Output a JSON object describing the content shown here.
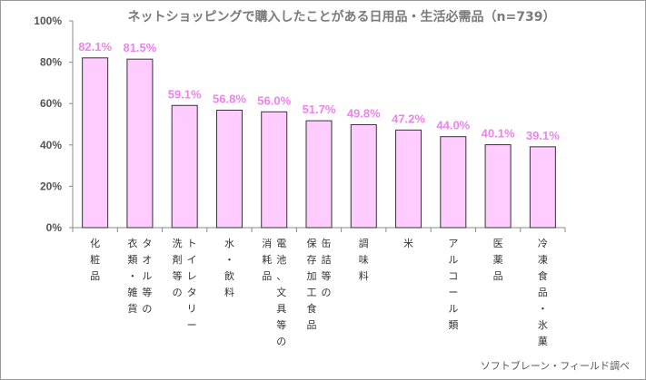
{
  "chart_data": {
    "type": "bar",
    "title": "ネットショッピングで購入したことがある日用品・生活必需品（n=739）",
    "source": "ソフトブレーン・フィールド調べ",
    "ylim": [
      0,
      100
    ],
    "yticks": [
      "0%",
      "20%",
      "40%",
      "60%",
      "80%",
      "100%"
    ],
    "grid": false,
    "categories": [
      {
        "lines": [
          "化粧品"
        ]
      },
      {
        "lines": [
          "タオル等の",
          "衣類・雑貨"
        ]
      },
      {
        "lines": [
          "トイレタリー",
          "洗剤等の"
        ]
      },
      {
        "lines": [
          "水・飲料"
        ]
      },
      {
        "lines": [
          "電池、文具等の",
          "消耗品"
        ]
      },
      {
        "lines": [
          "缶詰等の",
          "保存加工食品"
        ]
      },
      {
        "lines": [
          "調味料"
        ]
      },
      {
        "lines": [
          "米"
        ]
      },
      {
        "lines": [
          "アルコール類"
        ]
      },
      {
        "lines": [
          "医薬品"
        ]
      },
      {
        "lines": [
          "冷凍食品・氷菓"
        ]
      }
    ],
    "values": [
      82.1,
      81.5,
      59.1,
      56.8,
      56.0,
      51.7,
      49.8,
      47.2,
      44.0,
      40.1,
      39.1
    ],
    "value_labels": [
      "82.1%",
      "81.5%",
      "59.1%",
      "56.8%",
      "56.0%",
      "51.7%",
      "49.8%",
      "47.2%",
      "44.0%",
      "40.1%",
      "39.1%"
    ],
    "colors": {
      "bar_fill": "#ffccff",
      "bar_stroke": "#333333",
      "label": "#ee82ee",
      "axis": "#888888"
    }
  }
}
